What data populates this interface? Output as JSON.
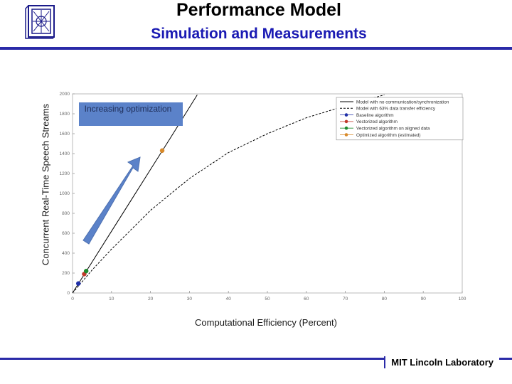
{
  "slide": {
    "title": "Performance Model",
    "subtitle": "Simulation and Measurements",
    "footer": "MIT Lincoln Laboratory",
    "callout": "Increasing optimization",
    "accent_color": "#2a2aa8"
  },
  "chart_data": {
    "type": "line",
    "xlabel": "Computational Efficiency (Percent)",
    "ylabel": "Concurrent Real-Time Speech Streams",
    "xlim": [
      0,
      100
    ],
    "ylim": [
      0,
      2000
    ],
    "x_ticks": [
      "0",
      "10",
      "20",
      "30",
      "40",
      "50",
      "60",
      "70",
      "80",
      "90",
      "100"
    ],
    "y_ticks": [
      "0",
      "200",
      "400",
      "600",
      "800",
      "1000",
      "1200",
      "1400",
      "1600",
      "1800",
      "2000"
    ],
    "grid": false,
    "legend_position": "top-right",
    "series": [
      {
        "name": "Model with no communication/synchronization",
        "style": "solid",
        "color": "#000000",
        "x": [
          0,
          5,
          10,
          15,
          20,
          25,
          32
        ],
        "y": [
          0,
          310,
          620,
          930,
          1240,
          1550,
          1990
        ]
      },
      {
        "name": "Model with 63% data transfer efficiency",
        "style": "dashed",
        "color": "#000000",
        "x": [
          0,
          5,
          10,
          20,
          30,
          40,
          50,
          60,
          70,
          80
        ],
        "y": [
          0,
          230,
          440,
          830,
          1150,
          1410,
          1600,
          1760,
          1880,
          1990
        ]
      },
      {
        "name": "Baseline algorithm",
        "style": "marker",
        "color": "#1f2fa8",
        "x": [
          1.5
        ],
        "y": [
          95
        ]
      },
      {
        "name": "Vectorized algorithm",
        "style": "marker",
        "color": "#c0392b",
        "x": [
          3
        ],
        "y": [
          190
        ]
      },
      {
        "name": "Vectorized algorithm on aligned data",
        "style": "marker",
        "color": "#1e8a2e",
        "x": [
          3.5
        ],
        "y": [
          220
        ]
      },
      {
        "name": "Optimized algorithm (estimated)",
        "style": "marker",
        "color": "#d88a2a",
        "x": [
          23
        ],
        "y": [
          1430
        ]
      }
    ]
  }
}
